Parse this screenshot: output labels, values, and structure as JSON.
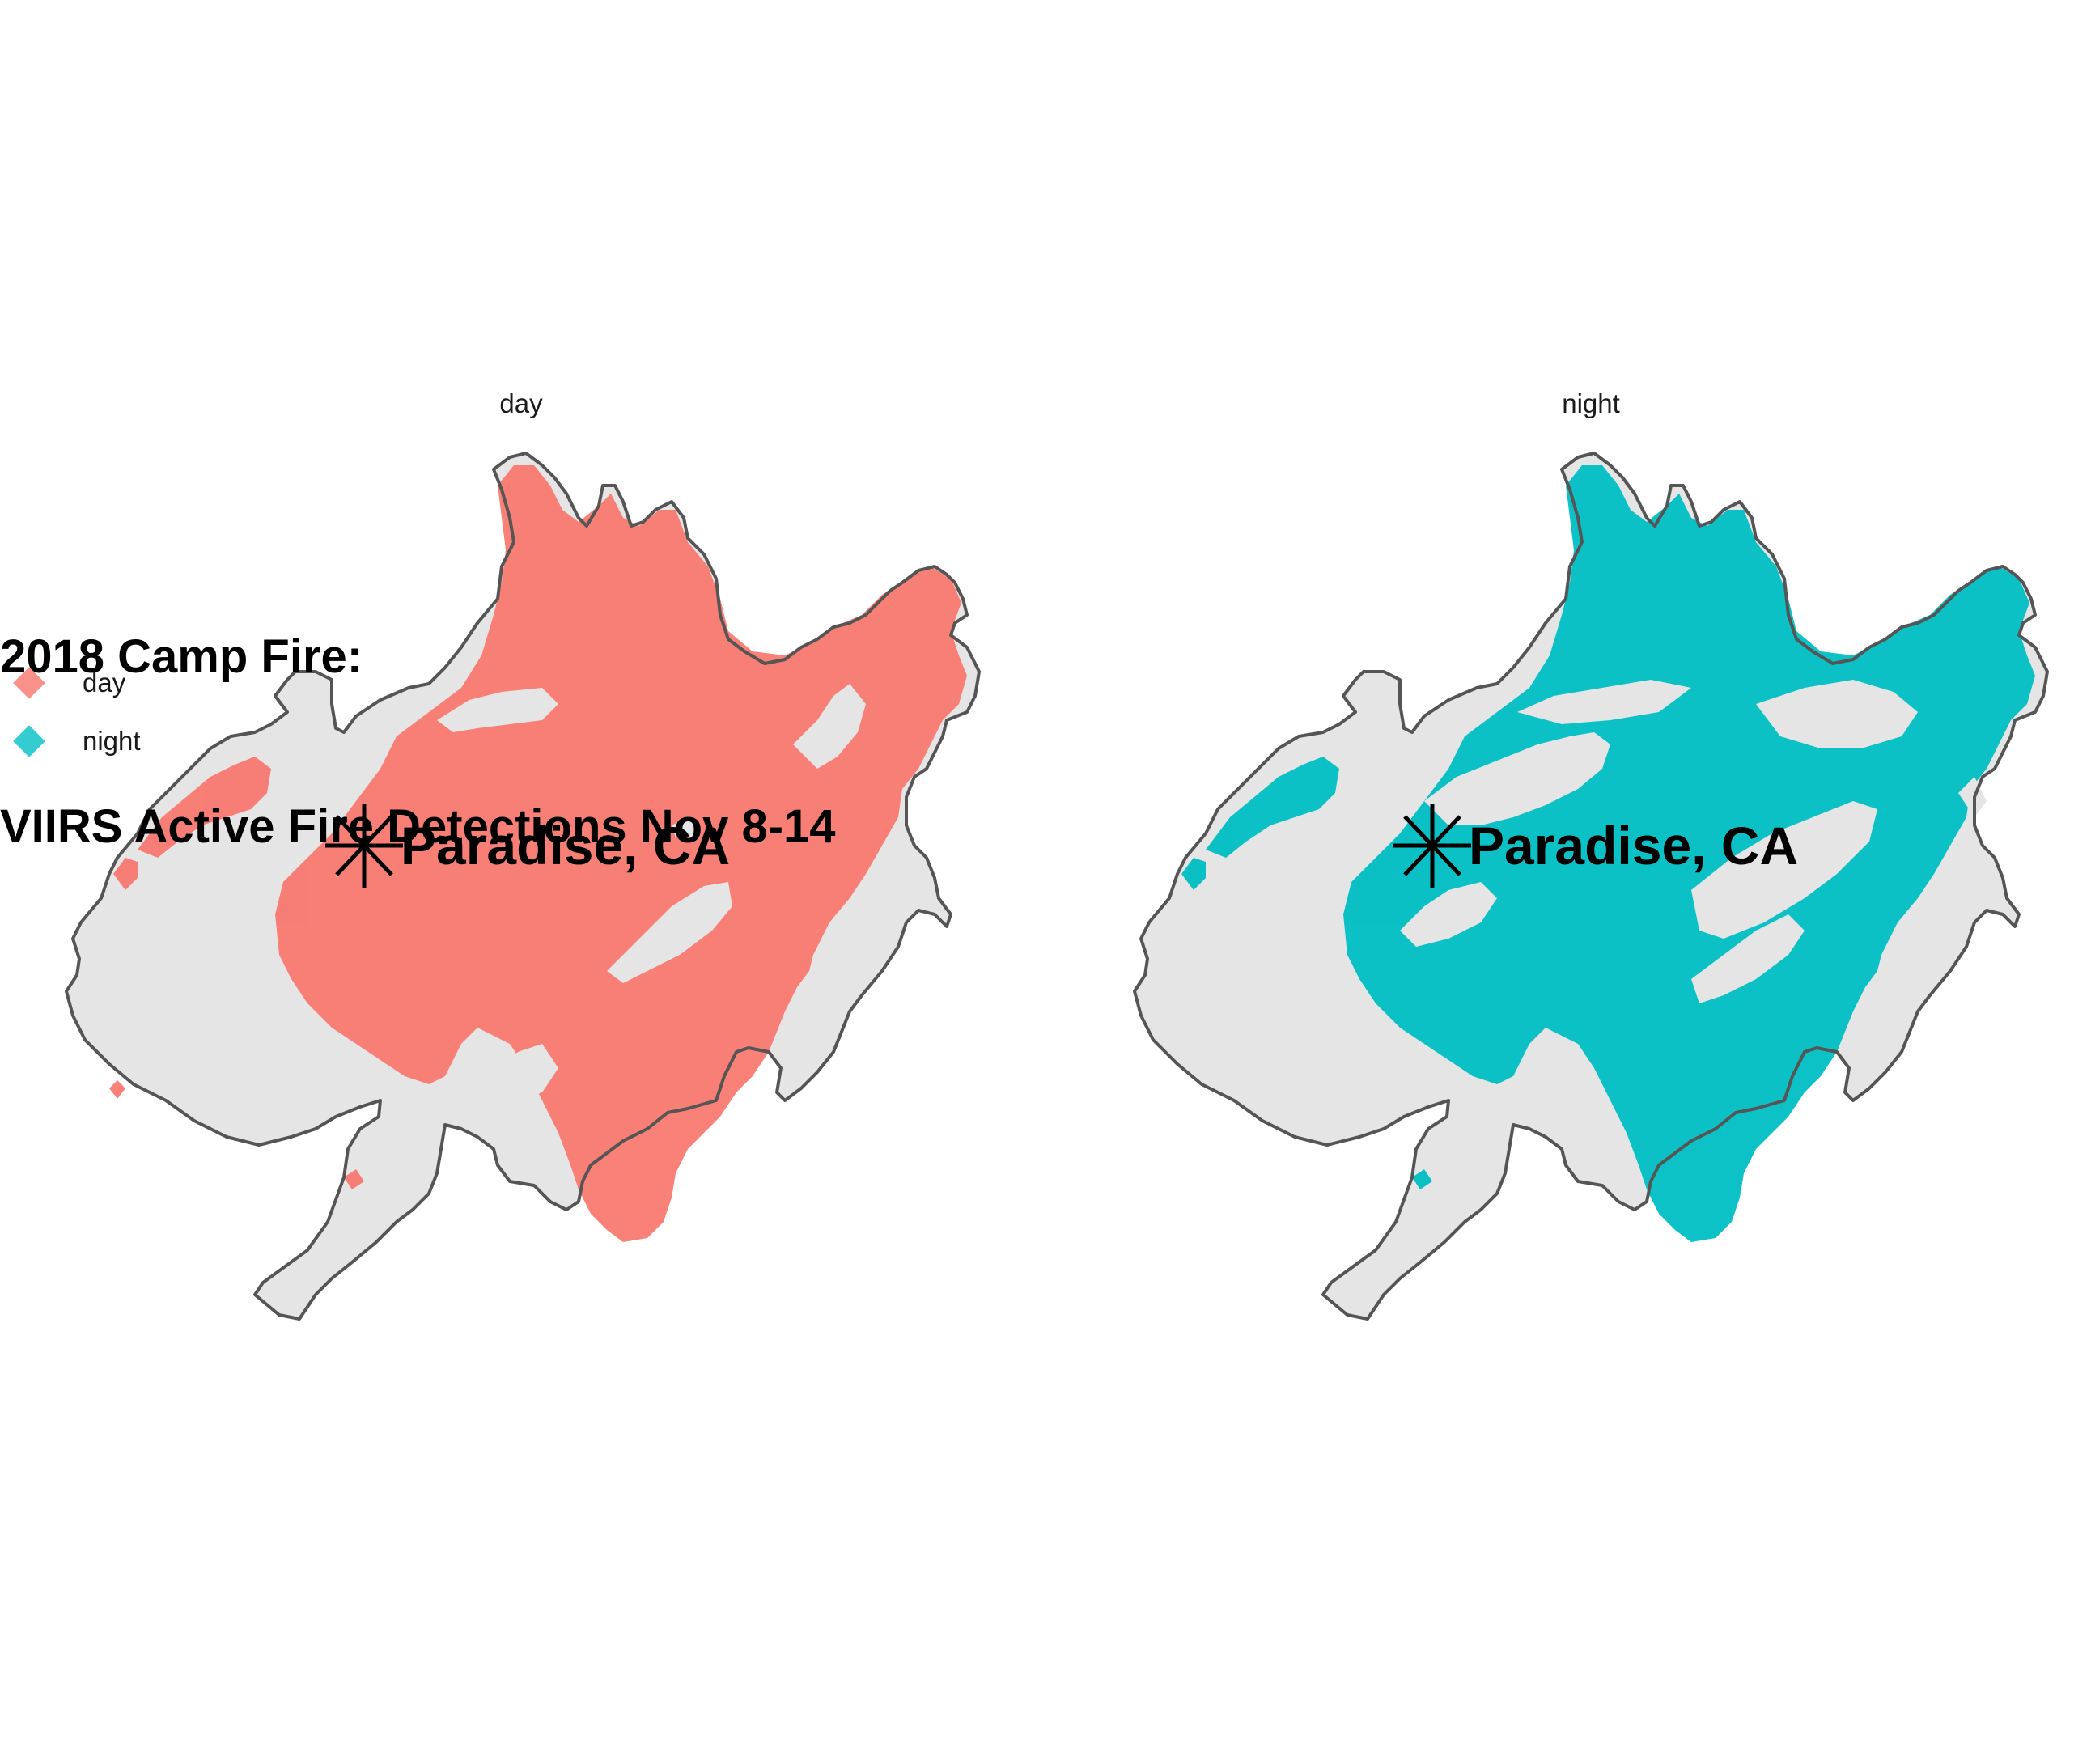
{
  "title": {
    "line1": "2018 Camp Fire:",
    "line2": "VIIRS Active Fire Detections Nov 8-14"
  },
  "panels": [
    {
      "key": "day",
      "label": "day",
      "color": "#F8766D"
    },
    {
      "key": "night",
      "label": "night",
      "color": "#00BFC4"
    }
  ],
  "legend": {
    "items": [
      {
        "label": "day",
        "color": "#F8766D"
      },
      {
        "label": "night",
        "color": "#00BFC4"
      }
    ]
  },
  "annotation": {
    "label": "Paradise, CA",
    "marker": "asterisk-icon"
  },
  "colors": {
    "boundary_fill": "#E5E5E5",
    "boundary_stroke": "#555555",
    "background": "#FFFFFF"
  }
}
